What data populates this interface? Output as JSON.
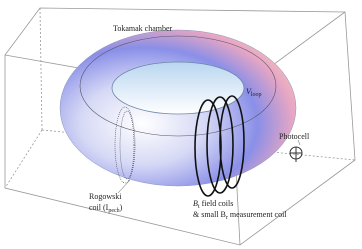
{
  "labels": {
    "chamber": "Tokamak chamber",
    "vloop": {
      "main": "V",
      "sub": "loop"
    },
    "photocell": "Photocell",
    "rogowski": {
      "line1": "Rogowski",
      "pre": "coil (I",
      "sub": "pech",
      "post": ")"
    },
    "field": {
      "main": "B",
      "sub": "t",
      "rest": " field coils"
    },
    "measure": {
      "pre": "& small B",
      "sub": "r",
      "rest": " measurement coil"
    }
  }
}
